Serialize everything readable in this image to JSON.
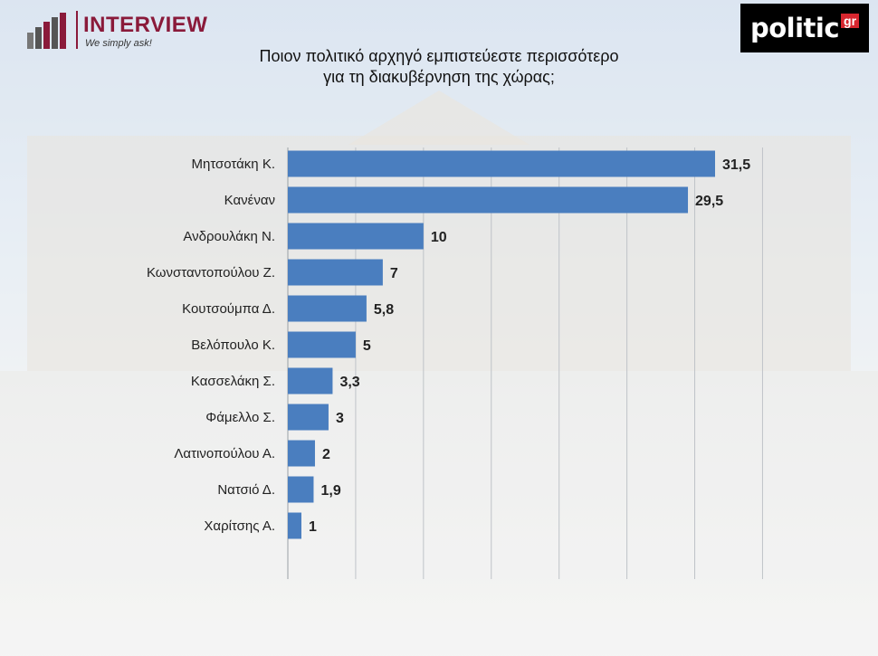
{
  "logos": {
    "interview_name": "INTERVIEW",
    "interview_tagline": "We simply ask!",
    "politic_word": "politic",
    "politic_suffix": "gr"
  },
  "chart_data": {
    "type": "bar",
    "orientation": "horizontal",
    "title_lines": [
      "Ποιον πολιτικό αρχηγό εμπιστεύεστε περισσότερο",
      "για τη διακυβέρνηση της χώρας;"
    ],
    "categories": [
      "Μητσοτάκη Κ.",
      "Κανέναν",
      "Ανδρουλάκη Ν.",
      "Κωνσταντοπούλου Ζ.",
      "Κουτσούμπα Δ.",
      "Βελόπουλο Κ.",
      "Κασσελάκη Σ.",
      "Φάμελλο Σ.",
      "Λατινοπούλου Α.",
      "Νατσιό Δ.",
      "Χαρίτσης Α."
    ],
    "values": [
      31.5,
      29.5,
      10,
      7,
      5.8,
      5,
      3.3,
      3,
      2,
      1.9,
      1
    ],
    "value_labels": [
      "31,5",
      "29,5",
      "10",
      "7",
      "5,8",
      "5",
      "3,3",
      "3",
      "2",
      "1,9",
      "1"
    ],
    "xlim": [
      0,
      35
    ],
    "grid": true,
    "colors": {
      "bar": "#4a7ebf",
      "grid": "#bfc3c8"
    }
  }
}
